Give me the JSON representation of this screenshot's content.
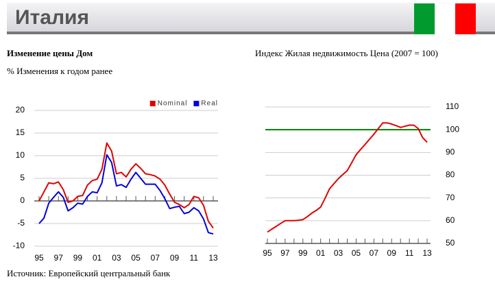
{
  "header": {
    "title": "Италия"
  },
  "source": "Источник: Европейский центральный банк",
  "chart_data": [
    {
      "type": "line",
      "title": "Изменение цены Дом",
      "subtitle": "% Изменения к годом ранее",
      "x": [
        1995,
        1995.5,
        1996,
        1996.5,
        1997,
        1997.5,
        1998,
        1998.5,
        1999,
        1999.5,
        2000,
        2000.5,
        2001,
        2001.5,
        2002,
        2002.5,
        2003,
        2003.5,
        2004,
        2004.5,
        2005,
        2005.5,
        2006,
        2006.5,
        2007,
        2007.5,
        2008,
        2008.5,
        2009,
        2009.5,
        2010,
        2010.5,
        2011,
        2011.5,
        2012,
        2012.5,
        2013
      ],
      "series": [
        {
          "name": "Nominal",
          "color": "#e00000",
          "values": [
            0,
            2,
            4,
            3.8,
            4.2,
            2.5,
            -0.3,
            0,
            1,
            1.2,
            3.5,
            4.5,
            4.8,
            7,
            12.8,
            11,
            6,
            6.3,
            5.3,
            7,
            8.2,
            7.2,
            6,
            5.8,
            5.5,
            4.8,
            3.5,
            1.5,
            -0.3,
            -0.8,
            -1.5,
            -0.8,
            1,
            0.7,
            -1,
            -4.5,
            -6
          ]
        },
        {
          "name": "Real",
          "color": "#0000e0",
          "values": [
            -5,
            -3.8,
            -0.5,
            0.8,
            2,
            0.8,
            -2.2,
            -1.5,
            -0.5,
            -0.7,
            1,
            2,
            1.8,
            4,
            10.2,
            8.5,
            3.3,
            3.6,
            3,
            4.8,
            6.3,
            5,
            3.7,
            3.7,
            3.7,
            2.3,
            0.5,
            -1.7,
            -1.4,
            -1.2,
            -2.8,
            -2.5,
            -1.5,
            -2.2,
            -4,
            -7,
            -7.3
          ]
        }
      ],
      "xlim": [
        1995,
        2013
      ],
      "xticks": [
        {
          "value": 1995,
          "label": "95"
        },
        {
          "value": 1997,
          "label": "97"
        },
        {
          "value": 1999,
          "label": "99"
        },
        {
          "value": 2001,
          "label": "01"
        },
        {
          "value": 2003,
          "label": "03"
        },
        {
          "value": 2005,
          "label": "05"
        },
        {
          "value": 2007,
          "label": "07"
        },
        {
          "value": 2009,
          "label": "09"
        },
        {
          "value": 2011,
          "label": "11"
        },
        {
          "value": 2013,
          "label": "13"
        }
      ],
      "ylim": [
        -10,
        20
      ],
      "yticks": [
        -10,
        -5,
        0,
        5,
        10,
        15,
        20
      ],
      "grid": true,
      "legend": "top-right",
      "y_axis_side": "left"
    },
    {
      "type": "line",
      "title": "Индекс Жилая недвижимость Цена (2007 = 100)",
      "x": [
        1995,
        1995.5,
        1996,
        1996.5,
        1997,
        1997.5,
        1998,
        1998.5,
        1999,
        1999.5,
        2000,
        2000.5,
        2001,
        2001.5,
        2002,
        2002.5,
        2003,
        2003.5,
        2004,
        2004.5,
        2005,
        2005.5,
        2006,
        2006.5,
        2007,
        2007.5,
        2008,
        2008.5,
        2009,
        2009.5,
        2010,
        2010.5,
        2011,
        2011.5,
        2012,
        2012.5,
        2013
      ],
      "series": [
        {
          "color": "#e00000",
          "values": [
            55,
            56.3,
            57.5,
            58.8,
            60,
            60,
            60,
            60.2,
            60.5,
            61.8,
            63.3,
            64.5,
            66,
            69.8,
            74,
            76.3,
            78.5,
            80.3,
            82,
            85.5,
            89,
            91.3,
            93.5,
            95.8,
            98,
            100.5,
            103,
            103,
            102.5,
            101.8,
            101,
            101.5,
            102,
            102,
            100.5,
            96.5,
            94.5
          ]
        }
      ],
      "xlim": [
        1995,
        2013
      ],
      "xticks": [
        {
          "value": 1995,
          "label": "95"
        },
        {
          "value": 1997,
          "label": "97"
        },
        {
          "value": 1999,
          "label": "99"
        },
        {
          "value": 2001,
          "label": "01"
        },
        {
          "value": 2003,
          "label": "03"
        },
        {
          "value": 2005,
          "label": "05"
        },
        {
          "value": 2007,
          "label": "07"
        },
        {
          "value": 2009,
          "label": "09"
        },
        {
          "value": 2011,
          "label": "11"
        },
        {
          "value": 2013,
          "label": "13"
        }
      ],
      "ylim": [
        50,
        110
      ],
      "yticks": [
        50,
        60,
        70,
        80,
        90,
        100,
        110
      ],
      "grid": true,
      "y_axis_side": "right",
      "reference_line": {
        "value": 100,
        "color": "#008000"
      }
    }
  ]
}
